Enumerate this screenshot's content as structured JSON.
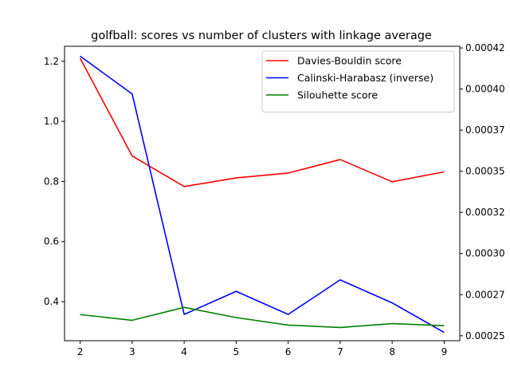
{
  "chart_data": {
    "type": "line",
    "title": "golfball: scores vs number of clusters with linkage average",
    "x": [
      2,
      3,
      4,
      5,
      6,
      7,
      8,
      9
    ],
    "xlim": [
      1.7,
      9.3
    ],
    "xticks": [
      "2",
      "3",
      "4",
      "5",
      "6",
      "7",
      "8",
      "9"
    ],
    "y_left": {
      "ylim": [
        0.27,
        1.25
      ],
      "ticks": [
        0.4,
        0.6,
        0.8,
        1.0,
        1.2
      ],
      "tick_labels": [
        "0.4",
        "0.6",
        "0.8",
        "1.0",
        "1.2"
      ]
    },
    "y_right": {
      "ylim": [
        0.000247,
        0.000426
      ],
      "ticks": [
        0.00025,
        0.000275,
        0.0003,
        0.000325,
        0.00035,
        0.000375,
        0.0004,
        0.000425
      ],
      "tick_labels": [
        "0.00025",
        "0.00027",
        "0.00030",
        "0.00032",
        "0.00035",
        "0.00037",
        "0.00040",
        "0.00042"
      ]
    },
    "series": [
      {
        "name": "Davies-Bouldin score",
        "axis": "left",
        "color": "#ff0000",
        "values": [
          1.21,
          0.885,
          0.783,
          0.812,
          0.828,
          0.873,
          0.799,
          0.832
        ]
      },
      {
        "name": "Calinski-Harabasz (inverse)",
        "axis": "right",
        "color": "#0000ff",
        "values": [
          0.00042,
          0.000397,
          0.000263,
          0.000277,
          0.000263,
          0.000284,
          0.00027,
          0.000252
        ]
      },
      {
        "name": "Silouhette score",
        "axis": "left",
        "color": "#008000",
        "values": [
          0.357,
          0.338,
          0.381,
          0.347,
          0.322,
          0.314,
          0.327,
          0.32
        ]
      }
    ],
    "legend_position": "top-right",
    "grid": false
  }
}
